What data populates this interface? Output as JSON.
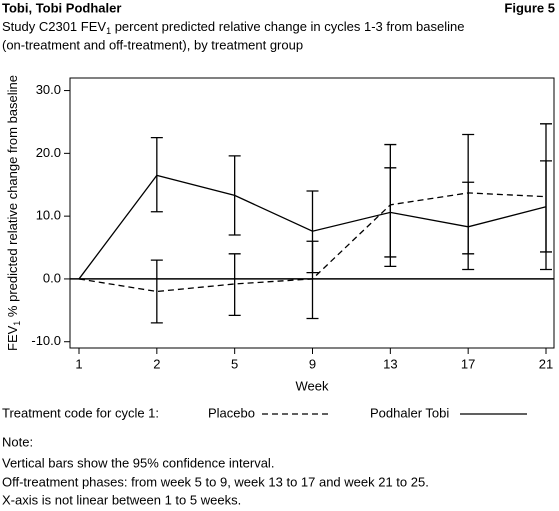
{
  "header": {
    "title": "Tobi, Tobi Podhaler",
    "figure": "Figure 5",
    "subtitle_line1": [
      "Study C2301 FEV",
      "1",
      " percent predicted relative change in cycles 1-3 from baseline"
    ],
    "subtitle_line2": "(on-treatment and off-treatment), by treatment group"
  },
  "chart_data": {
    "type": "line",
    "x_label": "Week",
    "y_label": [
      "FEV",
      "1",
      " % predicted relative change from baseline"
    ],
    "categories": [
      "1",
      "2",
      "5",
      "9",
      "13",
      "17",
      "21"
    ],
    "ylim": [
      -11,
      32
    ],
    "yticks": [
      {
        "value": -10,
        "label": "-10.0"
      },
      {
        "value": 0,
        "label": "0.0"
      },
      {
        "value": 10,
        "label": "10.0"
      },
      {
        "value": 20,
        "label": "20.0"
      },
      {
        "value": 30,
        "label": "30.0"
      }
    ],
    "reference_line": 0,
    "legend_title": "Treatment code for cycle 1:",
    "series": [
      {
        "name": "Placebo",
        "color": "#000000",
        "dashed": true,
        "values": [
          0,
          -2.0,
          -0.8,
          0.0,
          11.8,
          13.7,
          13.1
        ],
        "lower": [
          null,
          -7.0,
          -5.8,
          -6.3,
          2.0,
          4.0,
          1.5
        ],
        "upper": [
          null,
          3.0,
          4.0,
          6.0,
          21.4,
          23.0,
          24.7
        ]
      },
      {
        "name": "Podhaler Tobi",
        "color": "#000000",
        "dashed": false,
        "values": [
          0,
          16.5,
          13.3,
          7.6,
          10.6,
          8.3,
          11.5
        ],
        "lower": [
          null,
          10.7,
          7.0,
          1.0,
          3.5,
          1.5,
          4.3
        ],
        "upper": [
          null,
          22.5,
          19.6,
          14.0,
          17.7,
          15.4,
          18.8
        ]
      }
    ]
  },
  "notes": [
    "Note:",
    "Vertical bars show the 95% confidence interval.",
    "Off-treatment phases: from week 5 to 9, week 13 to 17 and week 21 to 25.",
    "X-axis is not linear between 1 to 5 weeks."
  ]
}
